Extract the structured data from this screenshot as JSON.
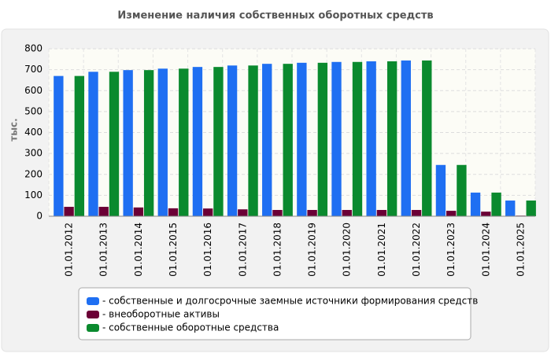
{
  "chart_data": {
    "type": "bar",
    "title": "Изменение наличия собственных оборотных средств",
    "y_label": "тыс.",
    "categories": [
      "01.01.2012",
      "01.01.2013",
      "01.01.2014",
      "01.01.2015",
      "01.01.2016",
      "01.01.2017",
      "01.01.2018",
      "01.01.2019",
      "01.01.2020",
      "01.01.2021",
      "01.01.2022",
      "01.01.2023",
      "01.01.2024",
      "01.01.2025"
    ],
    "series": [
      {
        "name": "- собственные и долгосрочные заемные источники формирования средств",
        "color": "#1f6ff2",
        "values": [
          670,
          690,
          698,
          705,
          713,
          720,
          728,
          733,
          737,
          740,
          744,
          245,
          113,
          75
        ]
      },
      {
        "name": "- внеоборотные активы",
        "color": "#6b0036",
        "values": [
          45,
          45,
          42,
          38,
          37,
          33,
          30,
          30,
          30,
          30,
          30,
          26,
          22,
          3
        ]
      },
      {
        "name": "- собственные оборотные средства",
        "color": "#0a8a2e",
        "values": [
          670,
          690,
          698,
          705,
          713,
          720,
          728,
          733,
          737,
          740,
          744,
          245,
          113,
          75
        ]
      }
    ],
    "ylim": [
      0,
      800
    ],
    "yticks": [
      0,
      100,
      200,
      300,
      400,
      500,
      600,
      700,
      800
    ],
    "grid": true
  }
}
